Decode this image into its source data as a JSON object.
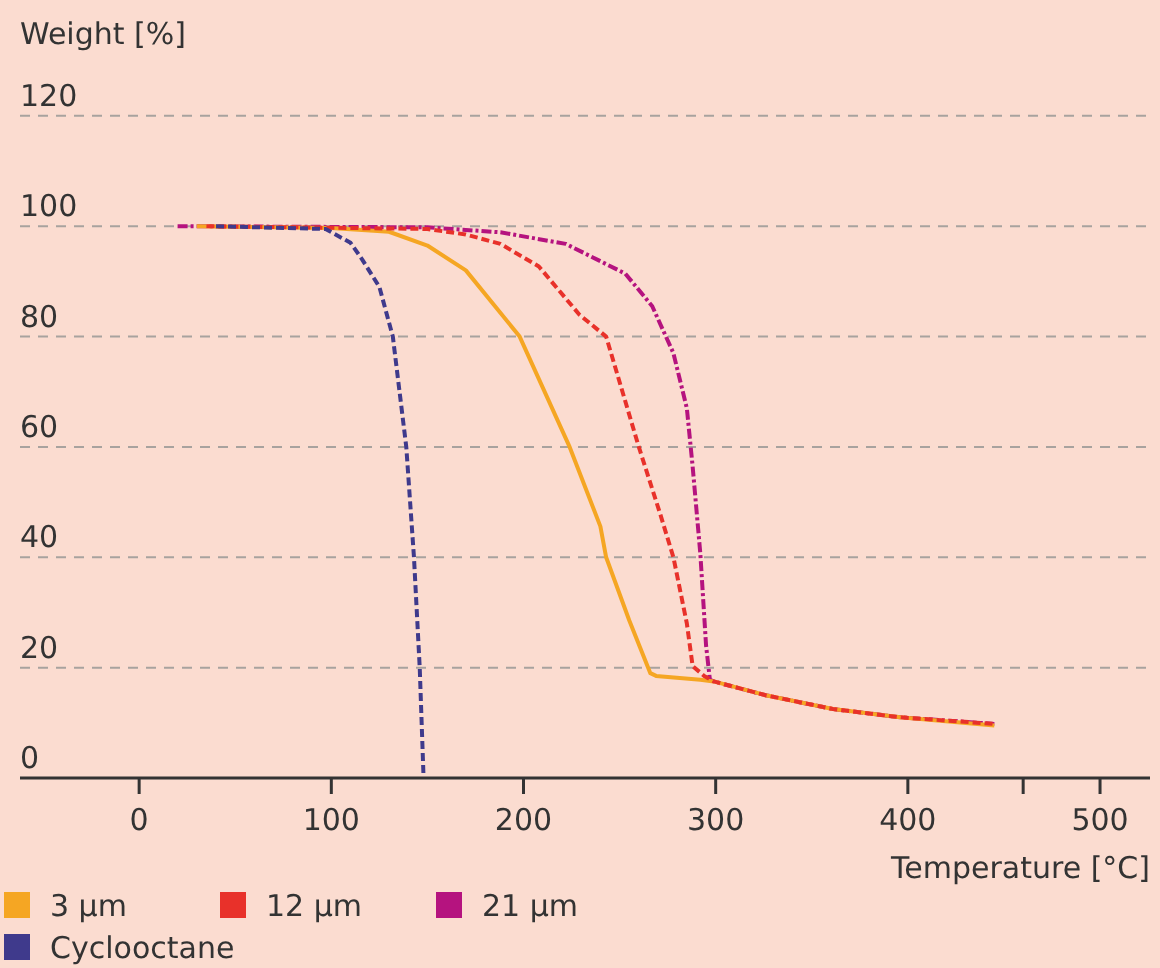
{
  "chart_data": {
    "type": "line",
    "xlabel": "Temperature [°C]",
    "ylabel": "Weight [%]",
    "xlim": [
      -62,
      526
    ],
    "xticks": [
      0,
      100,
      200,
      300,
      400,
      {
        "value": 460,
        "label": null
      },
      500
    ],
    "ylim": [
      0,
      141
    ],
    "yticks": [
      0,
      20,
      40,
      60,
      80,
      100,
      120
    ],
    "grid": "y",
    "legend": "bottom",
    "marker": "none",
    "series": [
      {
        "name": "3 µm",
        "color": "#f5a623",
        "line_style": "solid",
        "x": [
          30,
          100,
          130,
          150,
          170,
          198,
          224,
          240,
          243,
          255,
          266,
          269,
          292,
          299,
          326,
          361,
          396,
          445
        ],
        "values": [
          100,
          99.7,
          99,
          96.5,
          92,
          80,
          60,
          45.6,
          40,
          28.6,
          19,
          18.5,
          17.8,
          17.5,
          15,
          12.5,
          11,
          9.5
        ]
      },
      {
        "name": "12 µm",
        "color": "#e8312a",
        "line_style": "dashed",
        "x": [
          35,
          150,
          170,
          188,
          208,
          229,
          243,
          260,
          271,
          278,
          285,
          288,
          294,
          299,
          326,
          361,
          396,
          445
        ],
        "values": [
          100,
          99.5,
          98.5,
          96.8,
          92.7,
          84,
          80,
          60,
          48,
          40,
          28,
          20.3,
          18.5,
          17.5,
          15,
          12.5,
          11,
          9.8
        ]
      },
      {
        "name": "21 µm",
        "color": "#b5137f",
        "line_style": "dashdot",
        "x": [
          20,
          150,
          188,
          222,
          253,
          267,
          278,
          285,
          288,
          292,
          295,
          297,
          299,
          326,
          361,
          396,
          445
        ],
        "values": [
          100,
          99.8,
          98.9,
          96.8,
          91.4,
          85.5,
          77,
          67,
          56.5,
          40.7,
          24,
          17.8,
          17.5,
          15,
          12.5,
          11,
          9.8
        ]
      },
      {
        "name": "Cyclooctane",
        "color": "#3f3a8c",
        "line_style": "dashed",
        "x": [
          40,
          97,
          110,
          116,
          125,
          132,
          139,
          143,
          146,
          148
        ],
        "values": [
          100,
          99.5,
          97,
          94,
          89,
          80,
          60,
          40,
          20,
          0
        ]
      }
    ]
  }
}
